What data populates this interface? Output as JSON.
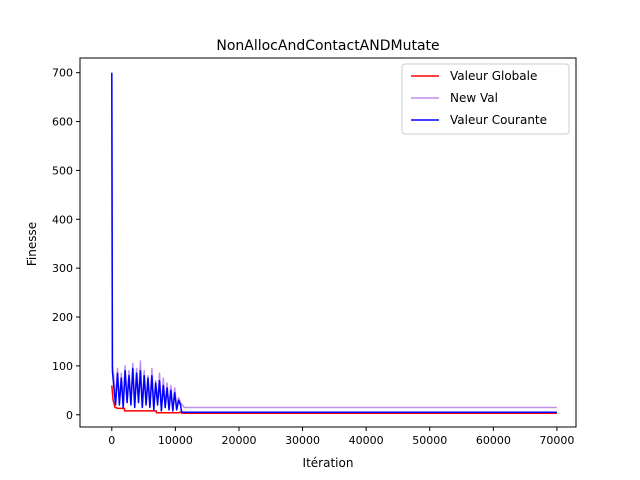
{
  "chart_data": {
    "type": "line",
    "title": "NonAllocAndContactANDMutate",
    "xlabel": "Itération",
    "ylabel": "Finesse",
    "xlim": [
      -5000,
      73000
    ],
    "ylim": [
      -25,
      730
    ],
    "xticks": [
      0,
      10000,
      20000,
      30000,
      40000,
      50000,
      60000,
      70000
    ],
    "yticks": [
      0,
      100,
      200,
      300,
      400,
      500,
      600,
      700
    ],
    "grid": false,
    "legend_position": "top-right",
    "series": [
      {
        "name": "Valeur Globale",
        "color": "#ff0000",
        "x": [
          0,
          200,
          500,
          1000,
          2000,
          2001,
          5000,
          7000,
          7001,
          10500,
          11000,
          11001,
          70000
        ],
        "y": [
          60,
          30,
          15,
          13,
          13,
          8,
          8,
          8,
          4,
          4,
          7,
          3,
          3
        ]
      },
      {
        "name": "New Val",
        "color": "#c08fee",
        "x": [
          0,
          100,
          300,
          600,
          900,
          1200,
          1500,
          1800,
          2100,
          2400,
          2700,
          3000,
          3300,
          3600,
          3900,
          4200,
          4500,
          4800,
          5100,
          5400,
          5700,
          6000,
          6300,
          6600,
          6900,
          7200,
          7500,
          7800,
          8100,
          8400,
          8700,
          9000,
          9300,
          9600,
          9900,
          10200,
          10500,
          10800,
          11100,
          11400,
          12000,
          15000,
          20000,
          25000,
          30000,
          35000,
          40000,
          45000,
          50000,
          55000,
          60000,
          65000,
          70000
        ],
        "y": [
          700,
          100,
          80,
          30,
          95,
          25,
          85,
          20,
          100,
          30,
          90,
          25,
          105,
          20,
          95,
          30,
          110,
          15,
          90,
          25,
          80,
          20,
          95,
          15,
          70,
          25,
          85,
          10,
          75,
          20,
          65,
          15,
          60,
          10,
          55,
          15,
          35,
          25,
          20,
          15,
          15,
          15,
          15,
          15,
          15,
          15,
          15,
          15,
          15,
          15,
          15,
          15,
          15
        ]
      },
      {
        "name": "Valeur Courante",
        "color": "#0000ff",
        "x": [
          0,
          100,
          300,
          600,
          900,
          1200,
          1500,
          1800,
          2100,
          2400,
          2700,
          3000,
          3300,
          3600,
          3900,
          4200,
          4500,
          4800,
          5100,
          5400,
          5700,
          6000,
          6300,
          6600,
          6900,
          7200,
          7500,
          7800,
          8100,
          8400,
          8700,
          9000,
          9300,
          9600,
          9900,
          10200,
          10500,
          10800,
          11000,
          12000,
          20000,
          30000,
          40000,
          50000,
          60000,
          70000
        ],
        "y": [
          700,
          90,
          60,
          20,
          85,
          20,
          75,
          15,
          90,
          25,
          80,
          20,
          95,
          15,
          85,
          25,
          90,
          15,
          80,
          20,
          75,
          15,
          80,
          10,
          65,
          20,
          70,
          8,
          60,
          15,
          55,
          10,
          50,
          8,
          45,
          10,
          30,
          20,
          5,
          5,
          5,
          5,
          5,
          5,
          5,
          5
        ]
      }
    ]
  }
}
